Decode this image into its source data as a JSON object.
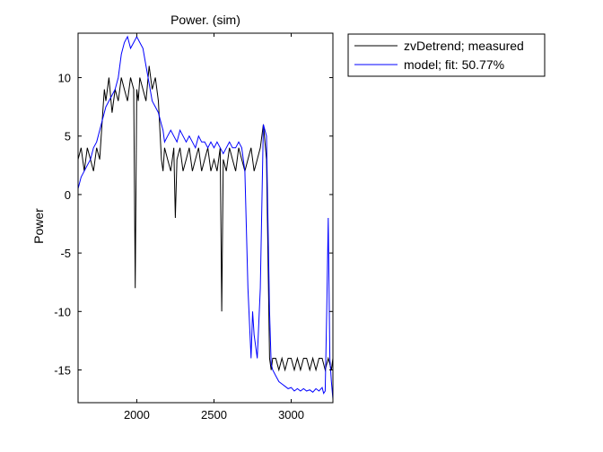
{
  "chart_data": {
    "type": "line",
    "title": "Power. (sim)",
    "xlabel": "",
    "ylabel": "Power",
    "xlim": [
      1620,
      3270
    ],
    "ylim": [
      -17.8,
      13.8
    ],
    "xticks": [
      2000,
      2500,
      3000
    ],
    "yticks": [
      10,
      5,
      0,
      -5,
      -10,
      -15
    ],
    "grid": false,
    "legend_position": "outside-top-right",
    "series": [
      {
        "name": "zvDetrend; measured",
        "color": "#000000",
        "x": [
          1620,
          1640,
          1660,
          1680,
          1700,
          1720,
          1740,
          1760,
          1780,
          1790,
          1800,
          1820,
          1840,
          1860,
          1880,
          1900,
          1920,
          1940,
          1960,
          1980,
          1990,
          2000,
          2010,
          2020,
          2040,
          2060,
          2080,
          2100,
          2120,
          2140,
          2160,
          2170,
          2180,
          2200,
          2220,
          2240,
          2250,
          2260,
          2280,
          2300,
          2320,
          2340,
          2360,
          2380,
          2400,
          2420,
          2440,
          2460,
          2480,
          2500,
          2520,
          2540,
          2550,
          2560,
          2580,
          2600,
          2620,
          2640,
          2660,
          2680,
          2700,
          2720,
          2740,
          2760,
          2780,
          2800,
          2820,
          2840,
          2860,
          2870,
          2880,
          2900,
          2920,
          2940,
          2960,
          2980,
          3000,
          3020,
          3040,
          3060,
          3080,
          3100,
          3120,
          3140,
          3160,
          3180,
          3200,
          3220,
          3240,
          3260,
          3270
        ],
        "y": [
          3,
          4,
          2,
          4,
          3,
          2,
          4,
          3,
          7,
          9,
          8,
          10,
          7,
          9,
          8,
          10,
          9,
          8,
          10,
          9,
          -8,
          9,
          8,
          10,
          9,
          8,
          11,
          9,
          10,
          8,
          3,
          2,
          4,
          3,
          2,
          4,
          -2,
          3,
          4,
          2,
          3,
          4,
          2,
          3,
          4,
          2,
          3,
          4,
          2,
          3,
          2,
          4,
          -10,
          3,
          2,
          4,
          3,
          2,
          4,
          3,
          2,
          3,
          4,
          2,
          3,
          4,
          6,
          3,
          -14,
          -15,
          -14,
          -14,
          -15,
          -14,
          -15,
          -14,
          -14,
          -15,
          -14,
          -15,
          -14,
          -14,
          -15,
          -14,
          -15,
          -14,
          -14,
          -15,
          -14,
          -15,
          -14
        ]
      },
      {
        "name": "model; fit: 50.77%",
        "color": "#0000ff",
        "x": [
          1620,
          1640,
          1660,
          1680,
          1700,
          1720,
          1740,
          1760,
          1780,
          1800,
          1820,
          1840,
          1860,
          1880,
          1900,
          1920,
          1940,
          1960,
          1980,
          2000,
          2020,
          2040,
          2060,
          2080,
          2100,
          2120,
          2140,
          2160,
          2170,
          2180,
          2200,
          2220,
          2240,
          2260,
          2280,
          2300,
          2320,
          2340,
          2360,
          2380,
          2400,
          2420,
          2440,
          2460,
          2480,
          2500,
          2520,
          2540,
          2560,
          2580,
          2600,
          2620,
          2640,
          2660,
          2680,
          2700,
          2720,
          2740,
          2750,
          2760,
          2780,
          2800,
          2820,
          2840,
          2860,
          2870,
          2880,
          2900,
          2920,
          2940,
          2960,
          2980,
          3000,
          3020,
          3040,
          3060,
          3080,
          3100,
          3120,
          3140,
          3160,
          3180,
          3200,
          3210,
          3220,
          3230,
          3240,
          3250,
          3260,
          3270
        ],
        "y": [
          0.5,
          1.5,
          2,
          2.5,
          3,
          4,
          4.5,
          5.5,
          6.5,
          7.5,
          8,
          8.5,
          9,
          10,
          12,
          13,
          13.5,
          12.5,
          13,
          13.5,
          13,
          12.5,
          11,
          9.5,
          8,
          7.5,
          7,
          6,
          5.5,
          4.5,
          5,
          5.5,
          5,
          4.5,
          5.5,
          5,
          4.5,
          5,
          4.5,
          4,
          5,
          4.5,
          4.5,
          4,
          4.5,
          4,
          4.5,
          4,
          3.5,
          4,
          4.5,
          4,
          4,
          4.5,
          4,
          2,
          -8,
          -14,
          -10,
          -12,
          -14,
          -8,
          6,
          5,
          -10,
          -14.5,
          -15,
          -15.5,
          -16,
          -16.2,
          -16.4,
          -16.6,
          -16.5,
          -16.8,
          -16.6,
          -16.8,
          -16.6,
          -16.8,
          -16.7,
          -16.9,
          -16.6,
          -16.8,
          -16.5,
          -17,
          -16.8,
          -10,
          -2,
          -14,
          -16,
          -17.5
        ]
      }
    ]
  }
}
